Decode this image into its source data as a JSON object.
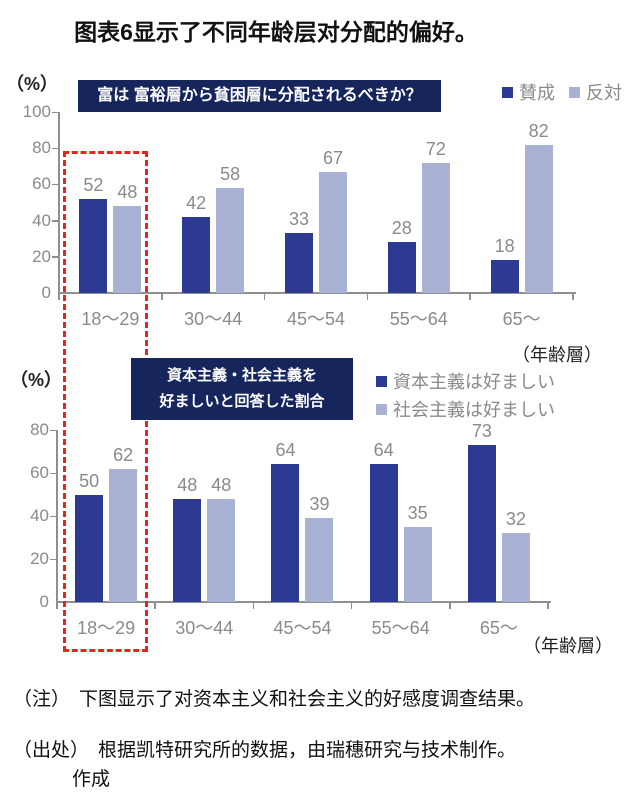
{
  "title": "图表6显示了不同年龄层对分配的偏好。",
  "colors": {
    "bar_dark_blue": "#2d3a94",
    "bar_light_blue": "#a9b1d4",
    "header_box_navy": "#16265c",
    "highlight_red": "#e8241d",
    "axis_gray": "#8f8f8f",
    "label_gray": "#8a8a8a"
  },
  "chart_data": [
    {
      "type": "bar",
      "question_box": "富は 富裕層から貧困層に分配されるべきか？",
      "unit_label": "（%）",
      "xlabel": "（年齢層）",
      "categories": [
        "18～29",
        "30～44",
        "45～54",
        "55～64",
        "65～"
      ],
      "series": [
        {
          "name": "賛成",
          "values": [
            52,
            42,
            33,
            28,
            18
          ]
        },
        {
          "name": "反対",
          "values": [
            48,
            58,
            67,
            72,
            82
          ]
        }
      ],
      "ylim": [
        0,
        100
      ],
      "yticks": [
        0,
        20,
        40,
        60,
        80,
        100
      ],
      "legend_position": "top-right",
      "grid": false
    },
    {
      "type": "bar",
      "question_box_line1": "資本主義・社会主義を",
      "question_box_line2": "好ましいと回答した割合",
      "unit_label": "（%）",
      "xlabel": "（年齢層）",
      "categories": [
        "18～29",
        "30～44",
        "45～54",
        "55～64",
        "65～"
      ],
      "series": [
        {
          "name": "資本主義は好ましい",
          "values": [
            50,
            48,
            64,
            64,
            73
          ]
        },
        {
          "name": "社会主義は好ましい",
          "values": [
            62,
            48,
            39,
            35,
            32
          ]
        }
      ],
      "ylim": [
        0,
        80
      ],
      "yticks": [
        0,
        20,
        40,
        60,
        80
      ],
      "legend_position": "top-right",
      "grid": false
    }
  ],
  "notes": {
    "note1_label": "（注）",
    "note1_text": "下图显示了对资本主义和社会主义的好感度调查结果。",
    "note2_label": "（出处）",
    "note2_text": "根据凯特研究所的数据，由瑞穗研究与技术制作。",
    "note2_cont": "作成"
  }
}
